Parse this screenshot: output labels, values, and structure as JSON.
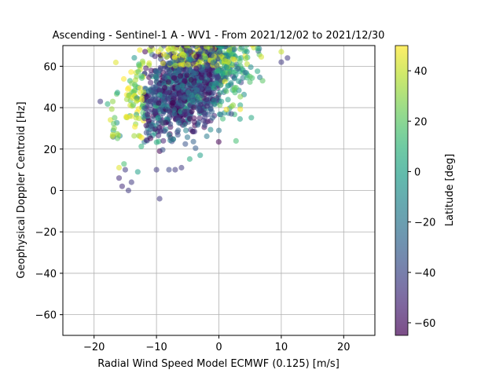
{
  "chart_data": {
    "type": "scatter",
    "title": "Ascending - Sentinel-1 A - WV1 - From 2021/12/02 to 2021/12/30",
    "xlabel": "Radial Wind Speed Model ECMWF (0.125) [m/s]",
    "ylabel": "Geophysical Doppler Centroid [Hz]",
    "xlim": [
      -25,
      25
    ],
    "ylim": [
      -70,
      70
    ],
    "x_ticks": [
      -20,
      -10,
      0,
      10,
      20
    ],
    "y_ticks": [
      -60,
      -40,
      -20,
      0,
      20,
      40,
      60
    ],
    "x_tick_labels": [
      "−20",
      "−10",
      "0",
      "10",
      "20"
    ],
    "y_tick_labels": [
      "−60",
      "−40",
      "−20",
      "0",
      "20",
      "40",
      "60"
    ],
    "grid": true,
    "point_alpha": 0.55,
    "colormap": "viridis",
    "colorbar": {
      "label": "Latitude [deg]",
      "range": [
        -65,
        50
      ],
      "ticks": [
        40,
        20,
        0,
        -20,
        -40,
        -60
      ],
      "tick_labels": [
        "40",
        "20",
        "0",
        "−20",
        "−40",
        "−60"
      ]
    },
    "cluster_description": "Dense cloud of points roughly between x=-18 and x=12 m/s, y=0 to 70 Hz; southern (low latitude, purple) points dominate the left/lower part, northern (yellow) points at far left and top, green/teal points toward the right.",
    "sample_points": [
      {
        "x": -9.5,
        "y": -4,
        "lat": -45
      },
      {
        "x": -14.5,
        "y": 0,
        "lat": -45
      },
      {
        "x": -15.5,
        "y": 2,
        "lat": -50
      },
      {
        "x": -14,
        "y": 4,
        "lat": -45
      },
      {
        "x": -16,
        "y": 6,
        "lat": -50
      },
      {
        "x": -15,
        "y": 10,
        "lat": -45
      },
      {
        "x": -13,
        "y": 9,
        "lat": 0
      },
      {
        "x": -16,
        "y": 11,
        "lat": 45
      },
      {
        "x": -10,
        "y": 10,
        "lat": -45
      },
      {
        "x": -8,
        "y": 10,
        "lat": -40
      },
      {
        "x": -7,
        "y": 10,
        "lat": -45
      },
      {
        "x": -6,
        "y": 11,
        "lat": -45
      },
      {
        "x": -3,
        "y": 17,
        "lat": 0
      },
      {
        "x": 11,
        "y": 64,
        "lat": -45
      },
      {
        "x": 10,
        "y": 62,
        "lat": -45
      },
      {
        "x": 10,
        "y": 67,
        "lat": 40
      },
      {
        "x": 7,
        "y": 53,
        "lat": 20
      },
      {
        "x": 5,
        "y": 55,
        "lat": 20
      },
      {
        "x": 0,
        "y": 29,
        "lat": -20
      },
      {
        "x": 2,
        "y": 37,
        "lat": -40
      },
      {
        "x": -17,
        "y": 27,
        "lat": 40
      },
      {
        "x": -17,
        "y": 43,
        "lat": 30
      },
      {
        "x": -19,
        "y": 43,
        "lat": -45
      }
    ]
  }
}
